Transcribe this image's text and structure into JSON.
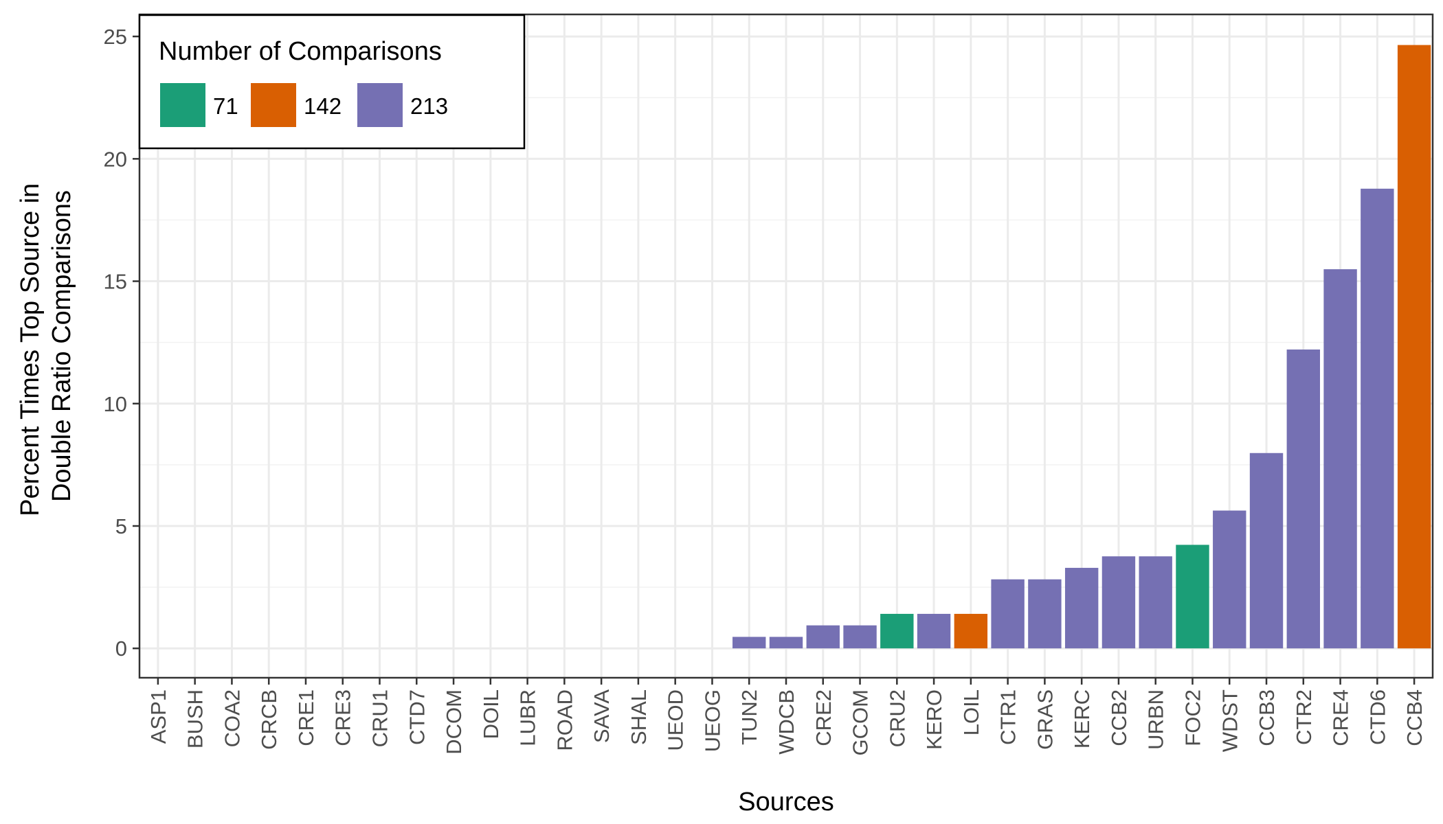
{
  "chart_data": {
    "type": "bar",
    "xlabel": "Sources",
    "ylabel_lines": [
      "Percent Times Top Source in",
      "Double Ratio Comparisons"
    ],
    "ylim": [
      -1.2,
      25.9
    ],
    "yticks": [
      0,
      5,
      10,
      15,
      20,
      25
    ],
    "grid": true,
    "legend": {
      "title": "Number of Comparisons",
      "placement": "top-left",
      "entries": [
        {
          "label": "71",
          "color": "#1b9e77"
        },
        {
          "label": "142",
          "color": "#d95f02"
        },
        {
          "label": "213",
          "color": "#7570b3"
        }
      ]
    },
    "categories": [
      "ASP1",
      "BUSH",
      "COA2",
      "CRCB",
      "CRE1",
      "CRE3",
      "CRU1",
      "CTD7",
      "DCOM",
      "DOIL",
      "LUBR",
      "ROAD",
      "SAVA",
      "SHAL",
      "UEOD",
      "UEOG",
      "TUN2",
      "WDCB",
      "CRE2",
      "GCOM",
      "CRU2",
      "KERO",
      "LOIL",
      "CTR1",
      "GRAS",
      "KERC",
      "CCB2",
      "URBN",
      "FOC2",
      "WDST",
      "CCB3",
      "CTR2",
      "CRE4",
      "CTD6",
      "CCB4"
    ],
    "values": [
      0,
      0,
      0,
      0,
      0,
      0,
      0,
      0,
      0,
      0,
      0,
      0,
      0,
      0,
      0,
      0,
      0.47,
      0.47,
      0.94,
      0.94,
      1.41,
      1.41,
      1.41,
      2.82,
      2.82,
      3.29,
      3.76,
      3.76,
      4.23,
      5.63,
      7.98,
      12.21,
      15.49,
      18.78,
      24.65
    ],
    "comparisons": [
      "213",
      "213",
      "213",
      "213",
      "213",
      "213",
      "213",
      "213",
      "213",
      "213",
      "213",
      "213",
      "213",
      "213",
      "213",
      "213",
      "213",
      "213",
      "213",
      "213",
      "71",
      "213",
      "142",
      "213",
      "213",
      "213",
      "213",
      "213",
      "71",
      "213",
      "213",
      "213",
      "213",
      "213",
      "142"
    ]
  }
}
